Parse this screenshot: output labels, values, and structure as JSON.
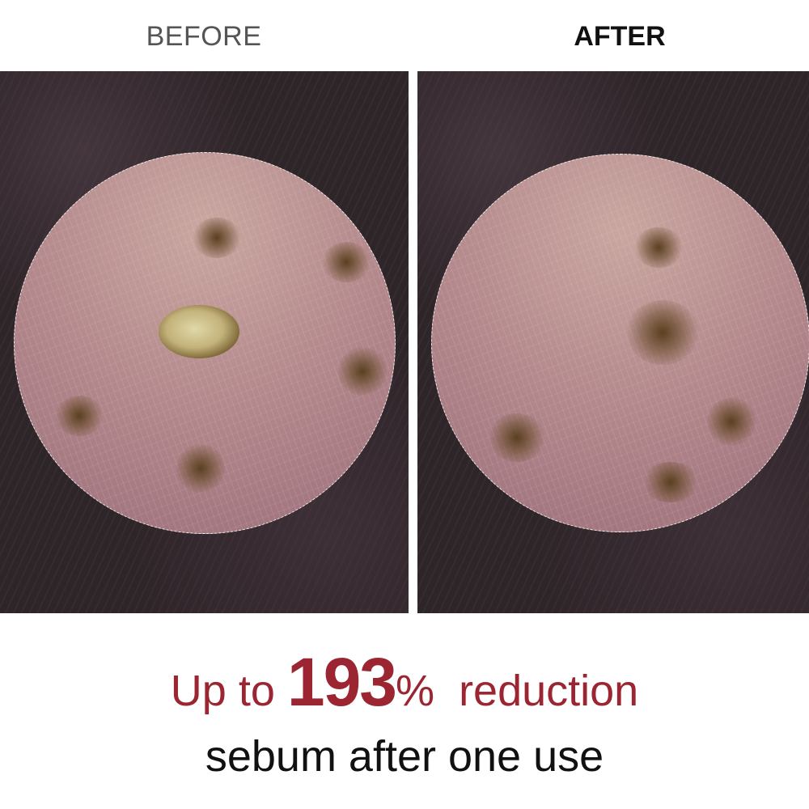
{
  "labels": {
    "before": "BEFORE",
    "after": "AFTER"
  },
  "headline": {
    "prefix": "Up to",
    "value": "193",
    "percent": "%",
    "suffix": "reduction",
    "line2": "sebum after one use"
  },
  "colors": {
    "accent": "#9b2530",
    "text": "#111111"
  }
}
